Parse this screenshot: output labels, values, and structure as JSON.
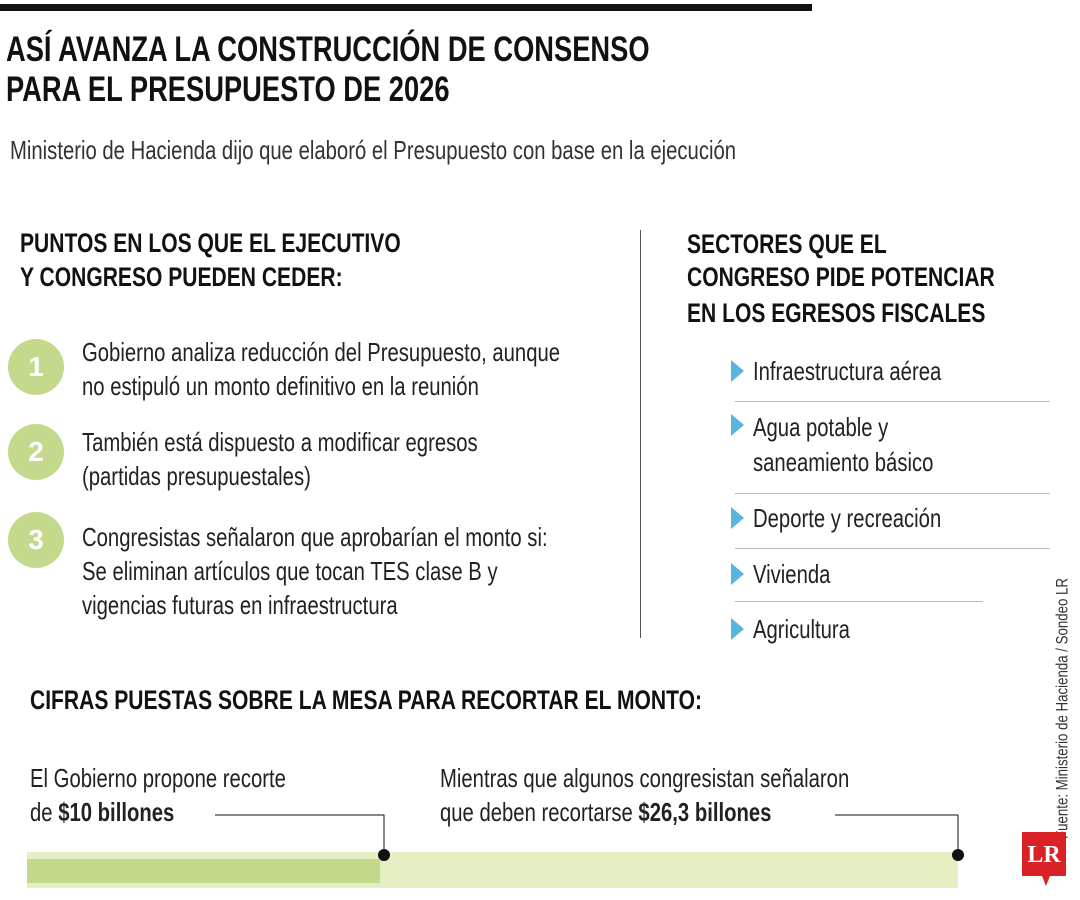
{
  "header": {
    "title": [
      "ASÍ AVANZA LA CONSTRUCCIÓN DE CONSENSO",
      "PARA EL PRESUPUESTO DE 2026"
    ],
    "subtitle": "Ministerio de Hacienda dijo que elaboró el Presupuesto con base en la ejecución"
  },
  "left": {
    "heading": [
      "PUNTOS EN LOS QUE EL EJECUTIVO",
      "Y CONGRESO PUEDEN CEDER:"
    ],
    "items": [
      {
        "number": "1",
        "lines": [
          "Gobierno analiza reducción del Presupuesto, aunque",
          "no estipuló un monto definitivo en la reunión"
        ]
      },
      {
        "number": "2",
        "lines": [
          "También está dispuesto a modificar egresos",
          "(partidas presupuestales)"
        ]
      },
      {
        "number": "3",
        "lines": [
          "Congresistas señalaron que aprobarían el monto si:",
          "Se eliminan artículos que tocan TES clase B y",
          "vigencias futuras en infraestructura"
        ]
      }
    ]
  },
  "right": {
    "heading": [
      "SECTORES QUE EL",
      "CONGRESO PIDE POTENCIAR",
      "EN LOS EGRESOS FISCALES"
    ],
    "items": [
      [
        "Infraestructura aérea"
      ],
      [
        "Agua potable y",
        "saneamiento básico"
      ],
      [
        "Deporte y recreación"
      ],
      [
        "Vivienda"
      ],
      [
        "Agricultura"
      ]
    ]
  },
  "bottom": {
    "heading": "CIFRAS PUESTAS SOBRE LA MESA PARA RECORTAR EL MONTO:",
    "government": {
      "line": "El Gobierno propone recorte",
      "prefix": "de",
      "amount": "$10 billones"
    },
    "congress": {
      "line": "Mientras que algunos congresistan señalaron",
      "prefix": "que deben recortarse",
      "amount": "$26,3 billones"
    }
  },
  "source": "Fuente: Ministerio de Hacienda / Sondeo LR",
  "logo": "LR"
}
